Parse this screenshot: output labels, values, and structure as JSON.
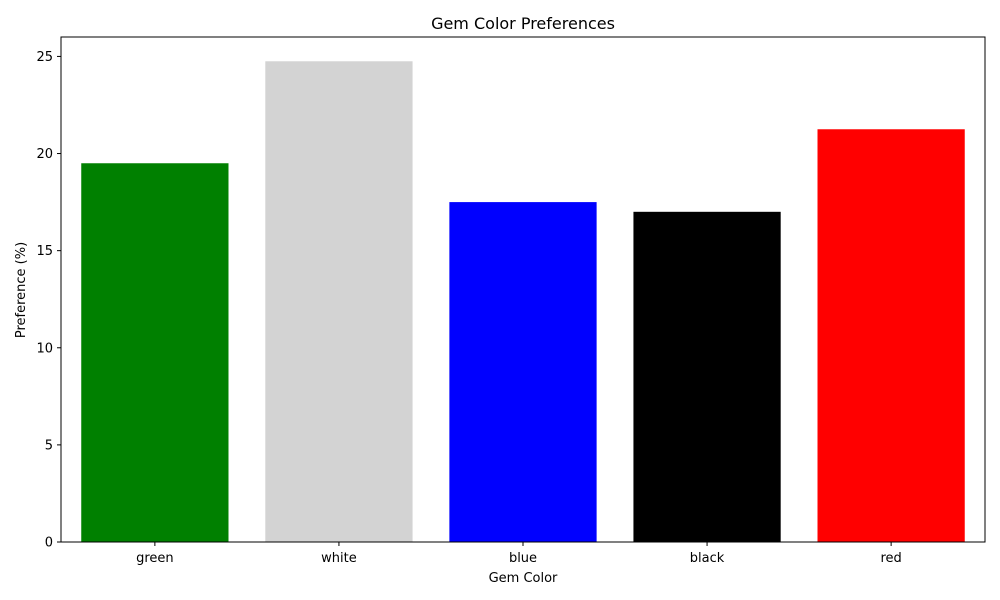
{
  "chart_data": {
    "type": "bar",
    "title": "Gem Color Preferences",
    "xlabel": "Gem Color",
    "ylabel": "Preference (%)",
    "categories": [
      "green",
      "white",
      "blue",
      "black",
      "red"
    ],
    "values": [
      19.5,
      24.75,
      17.5,
      17.0,
      21.25
    ],
    "colors": [
      "#008000",
      "#d3d3d3",
      "#0000ff",
      "#000000",
      "#ff0000"
    ],
    "ylim": [
      0,
      26
    ],
    "yticks": [
      0,
      5,
      10,
      15,
      20,
      25
    ],
    "grid": false,
    "legend": "none"
  }
}
